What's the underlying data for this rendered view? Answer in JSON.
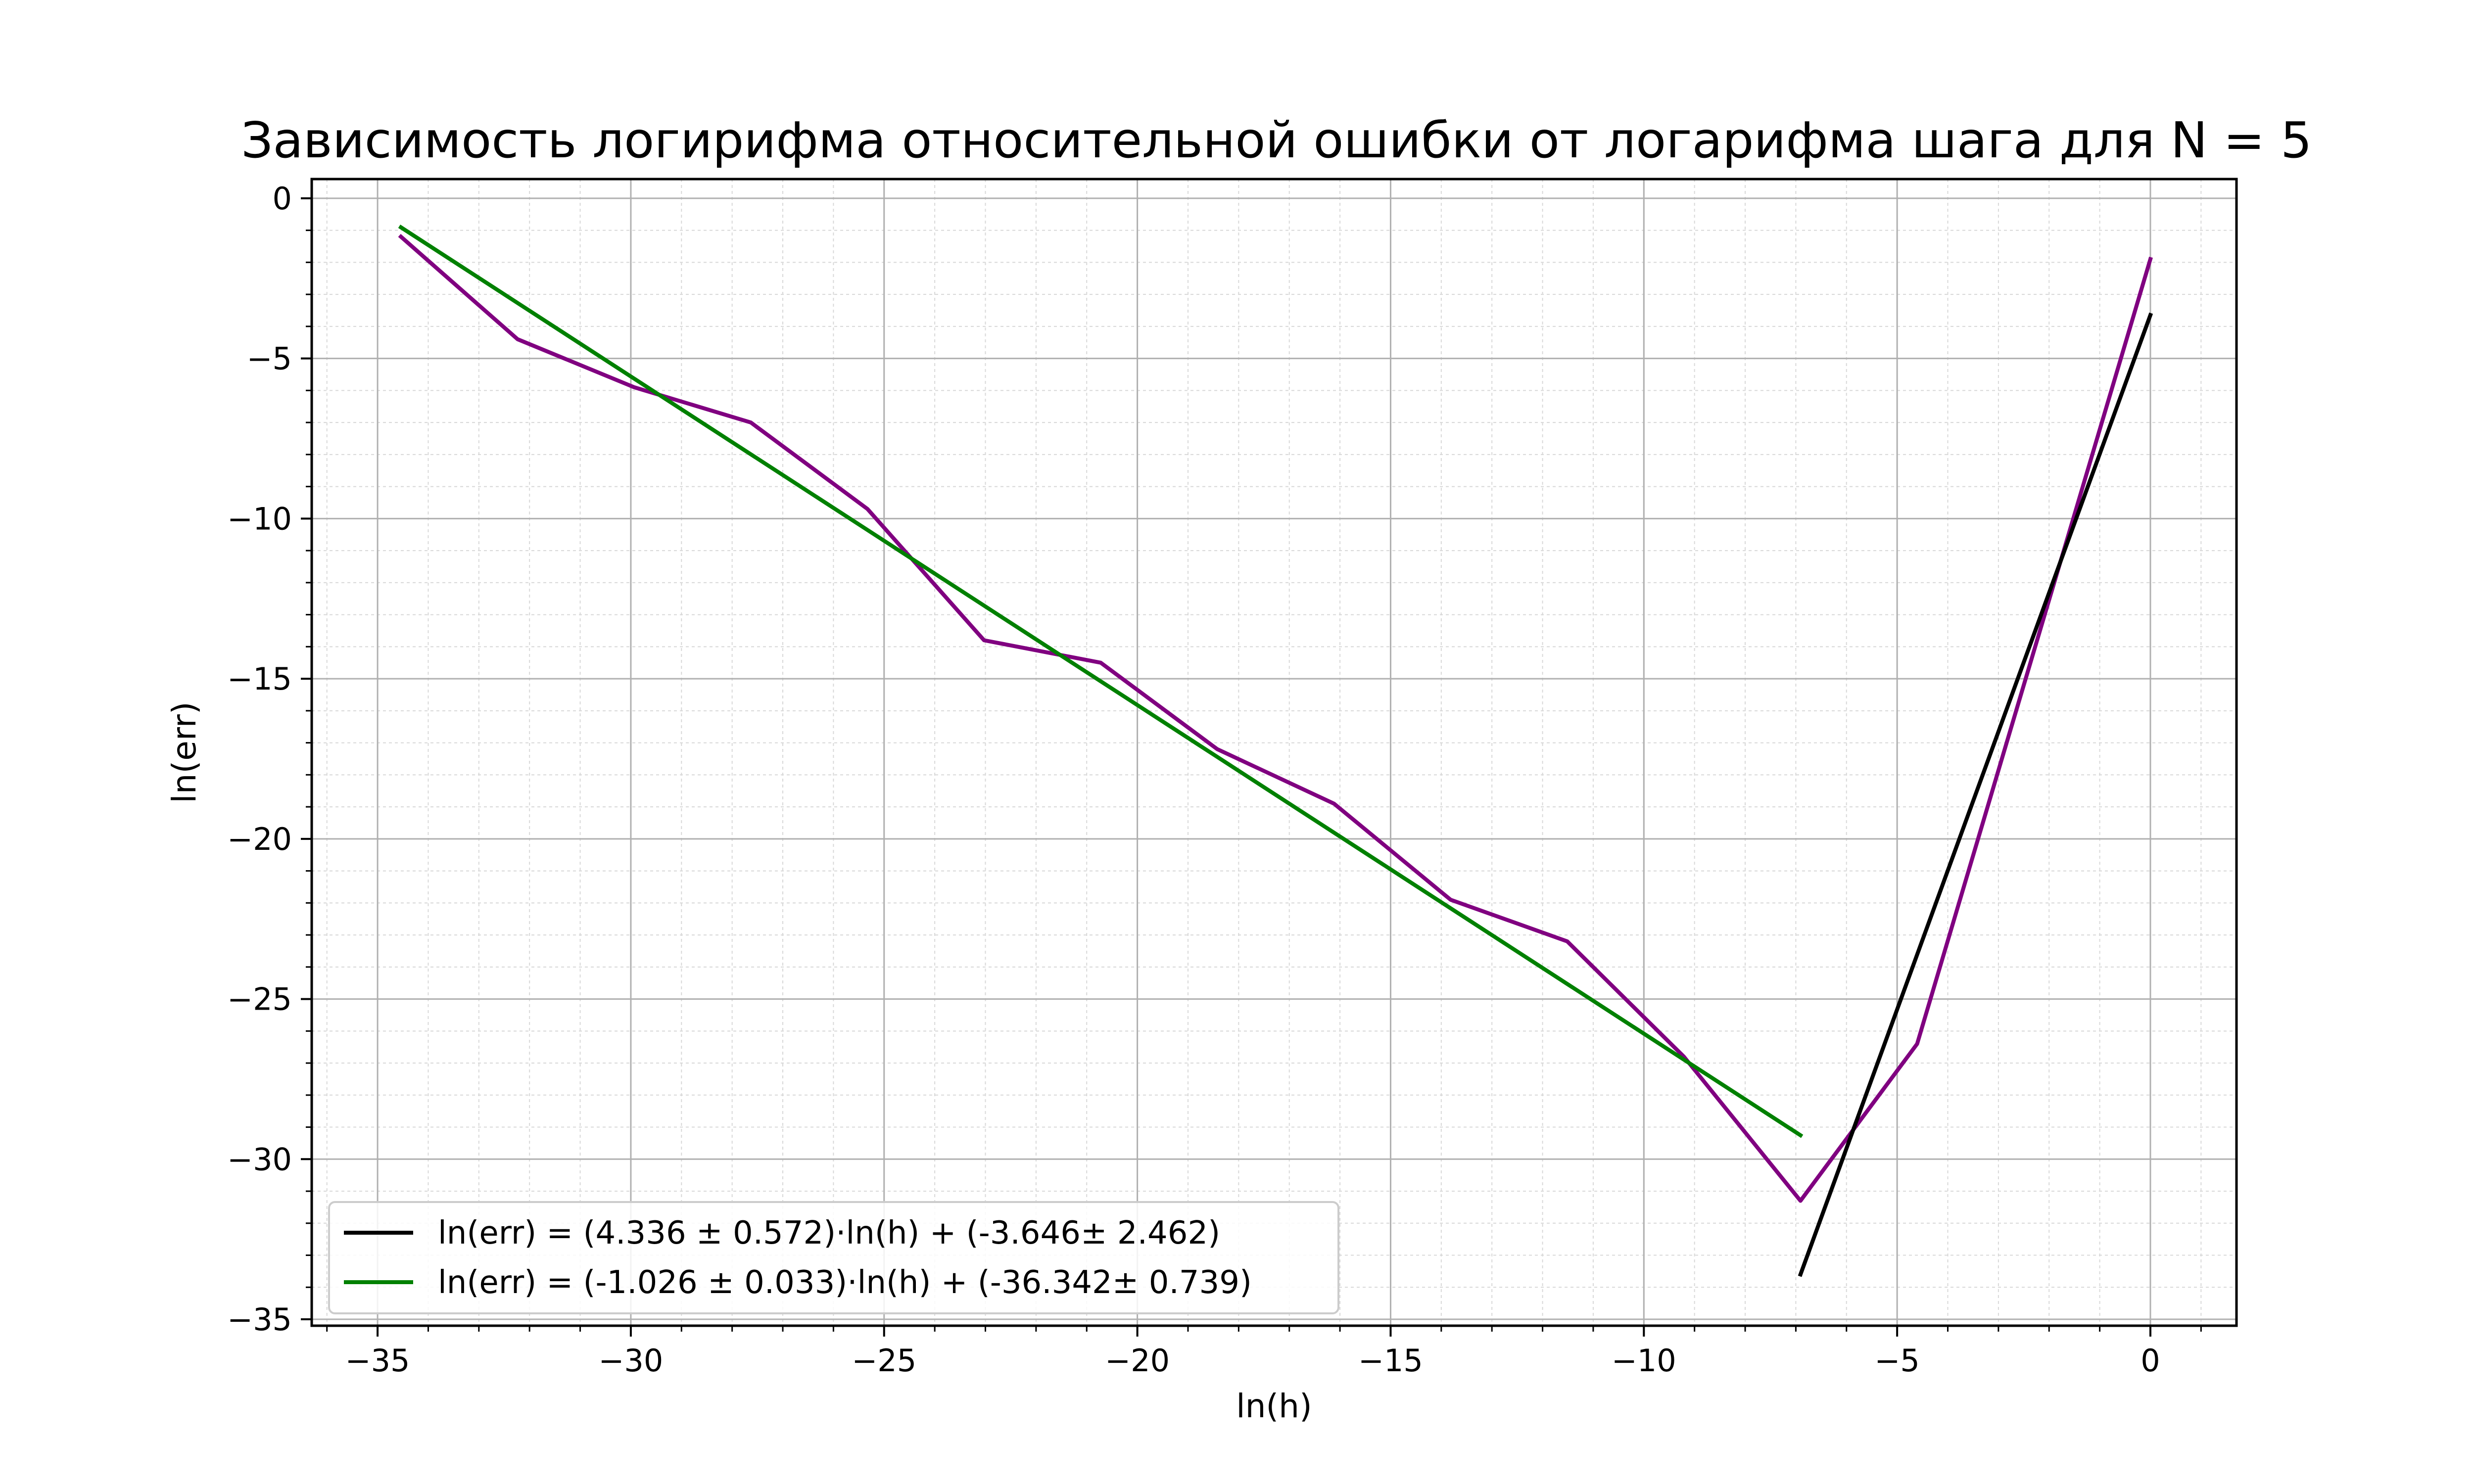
{
  "chart_data": {
    "type": "line",
    "title": "Зависимость логирифма относительной ошибки от логарифма шага для N = 5",
    "xlabel": "ln(h)",
    "ylabel": "ln(err)",
    "xlim": [
      -36.3,
      1.7
    ],
    "ylim": [
      -35.2,
      0.6
    ],
    "x_ticks": [
      -35,
      -30,
      -25,
      -20,
      -15,
      -10,
      -5,
      0
    ],
    "x_tick_labels": [
      "−35",
      "−30",
      "−25",
      "−20",
      "−15",
      "−10",
      "−5",
      "0"
    ],
    "y_ticks": [
      0,
      -5,
      -10,
      -15,
      -20,
      -25,
      -30,
      -35
    ],
    "y_tick_labels": [
      "0",
      "−5",
      "−10",
      "−15",
      "−20",
      "−25",
      "−30",
      "−35"
    ],
    "grid": true,
    "minor_grid": true,
    "legend_position": "lower-left",
    "series": [
      {
        "name": "ln(err) = (4.336 ± 0.572)·ln(h) + (-3.646± 2.462)",
        "color": "#000000",
        "x": [
          -6.908,
          0
        ],
        "y": [
          -33.6,
          -3.646
        ]
      },
      {
        "name": "ln(err) = (-1.026 ± 0.033)·ln(h) + (-36.342± 0.739)",
        "color": "#008000",
        "x": [
          -34.539,
          -6.908
        ],
        "y": [
          -0.906,
          -29.254
        ]
      },
      {
        "name": "",
        "color": "#800080",
        "x": [
          -34.539,
          -32.236,
          -29.934,
          -27.631,
          -25.328,
          -23.026,
          -20.723,
          -18.421,
          -16.118,
          -13.816,
          -11.513,
          -9.21,
          -6.908,
          -4.605,
          0
        ],
        "y": [
          -1.2,
          -4.4,
          -5.9,
          -7.0,
          -9.7,
          -13.8,
          -14.5,
          -17.2,
          -18.9,
          -21.9,
          -23.2,
          -26.8,
          -31.3,
          -26.4,
          -1.9
        ]
      }
    ]
  }
}
